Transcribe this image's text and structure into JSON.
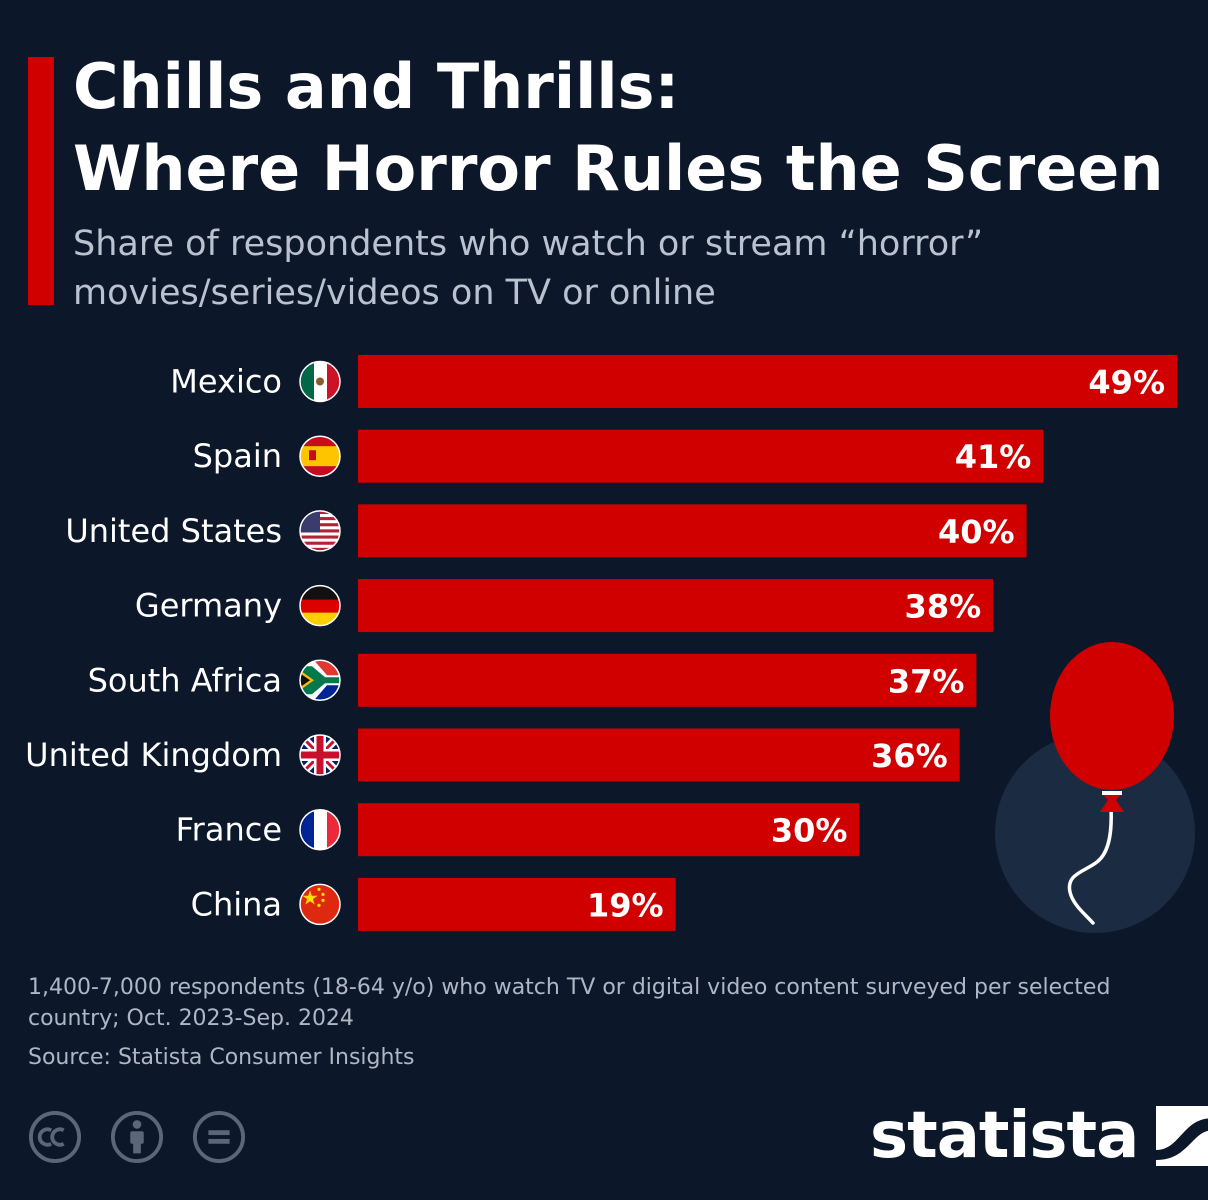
{
  "header": {
    "title_lines": [
      "Chills and Thrills:",
      "Where Horror Rules the Screen"
    ],
    "subtitle_lines": [
      "Share of respondents who watch or stream “horror”",
      "movies/series/videos on TV or online"
    ]
  },
  "chart_data": {
    "type": "bar",
    "orientation": "horizontal",
    "categories": [
      "Mexico",
      "Spain",
      "United States",
      "Germany",
      "South Africa",
      "United Kingdom",
      "France",
      "China"
    ],
    "values": [
      49,
      41,
      40,
      38,
      37,
      36,
      30,
      19
    ],
    "value_labels": [
      "49%",
      "41%",
      "40%",
      "38%",
      "37%",
      "36%",
      "30%",
      "19%"
    ],
    "flags": [
      "mexico-flag-icon",
      "spain-flag-icon",
      "united-states-flag-icon",
      "germany-flag-icon",
      "south-africa-flag-icon",
      "united-kingdom-flag-icon",
      "france-flag-icon",
      "china-flag-icon"
    ],
    "unit": "%",
    "xlim": [
      0,
      49
    ],
    "bar_color": "#d10000",
    "grid": false,
    "legend": "none"
  },
  "footer": {
    "note_lines": [
      "1,400-7,000 respondents (18-64 y/o) who watch TV or digital video content surveyed per selected",
      "country; Oct. 2023-Sep. 2024"
    ],
    "source": "Source: Statista Consumer Insights",
    "brand": "statista",
    "license_icons": [
      "cc-icon",
      "attribution-icon",
      "no-derivatives-icon"
    ]
  },
  "colors": {
    "background": "#0c1729",
    "accent": "#d10000",
    "text": "#ffffff",
    "muted_text": "#b9c2ce",
    "decor_circle": "#1b2b42"
  },
  "decoration": "balloon-icon"
}
